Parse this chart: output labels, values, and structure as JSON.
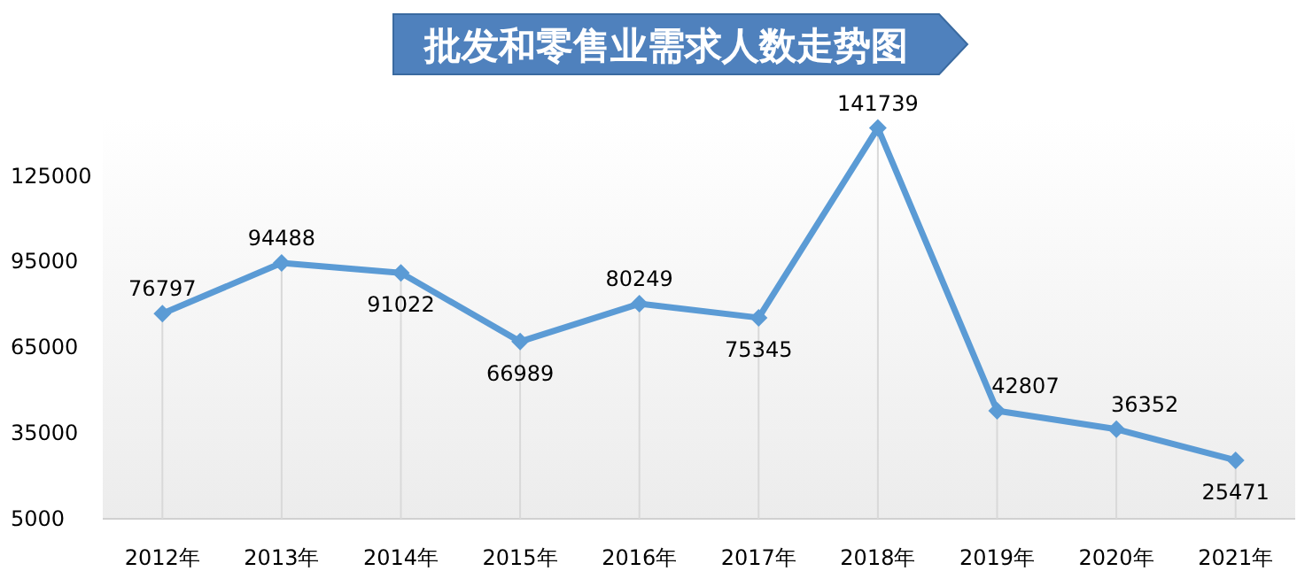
{
  "chart_data": {
    "type": "line",
    "title": "批发和零售业需求人数走势图",
    "categories": [
      "2012年",
      "2013年",
      "2014年",
      "2015年",
      "2016年",
      "2017年",
      "2018年",
      "2019年",
      "2020年",
      "2021年"
    ],
    "series": [
      {
        "color": "#5b9bd5",
        "values": [
          76797,
          94488,
          91022,
          66989,
          80249,
          75345,
          141739,
          42807,
          36352,
          25471
        ]
      }
    ],
    "ylim": [
      5000,
      145000
    ],
    "yticks": [
      5000,
      35000,
      65000,
      95000,
      125000
    ],
    "data_labels": true,
    "marker": "diamond",
    "grid": "x"
  }
}
